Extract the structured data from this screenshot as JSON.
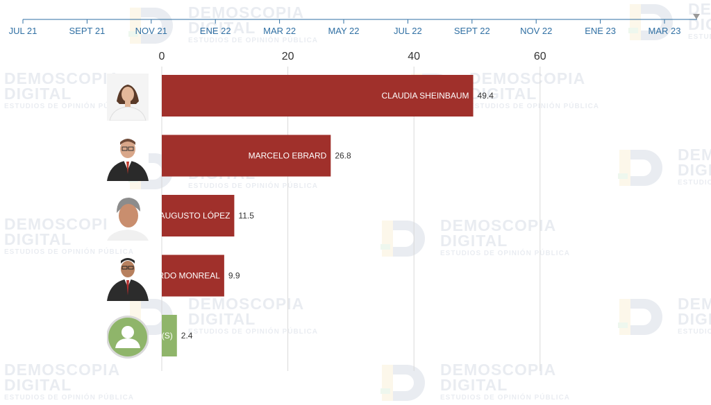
{
  "timeline": {
    "labels": [
      "JUL 21",
      "SEPT 21",
      "NOV 21",
      "ENE 22",
      "MAR 22",
      "MAY 22",
      "JUL 22",
      "SEPT 22",
      "NOV 22",
      "ENE 23",
      "MAR 23"
    ]
  },
  "watermark": {
    "name_line1": "DEMOSCOPIA",
    "name_line2": "DIGITAL",
    "tagline": "ESTUDIOS DE OPINIÓN PÚBLICA"
  },
  "colors": {
    "bar_primary": "#a0302b",
    "bar_other": "#8fb56a",
    "grid": "#d9d9d9",
    "axis_text": "#333333",
    "timeline": "#2f6fa3",
    "watermark": "#1a3a6e"
  },
  "chart_data": {
    "type": "bar",
    "orientation": "horizontal",
    "categories": [
      "CLAUDIA SHEINBAUM",
      "MARCELO EBRARD",
      "ADÁN AUGUSTO LÓPEZ",
      "RICARDO MONREAL",
      "OTRO(S)"
    ],
    "values": [
      49.4,
      26.8,
      11.5,
      9.9,
      2.4
    ],
    "xticks": [
      0,
      20,
      40,
      60
    ],
    "xlim": [
      0,
      88
    ],
    "grid": true,
    "bar_colors": [
      "#a0302b",
      "#a0302b",
      "#a0302b",
      "#a0302b",
      "#8fb56a"
    ],
    "avatars": [
      "woman-portrait",
      "man-glasses-portrait",
      "man-gray-hair-portrait",
      "man-suit-portrait",
      "generic-user-icon"
    ]
  }
}
